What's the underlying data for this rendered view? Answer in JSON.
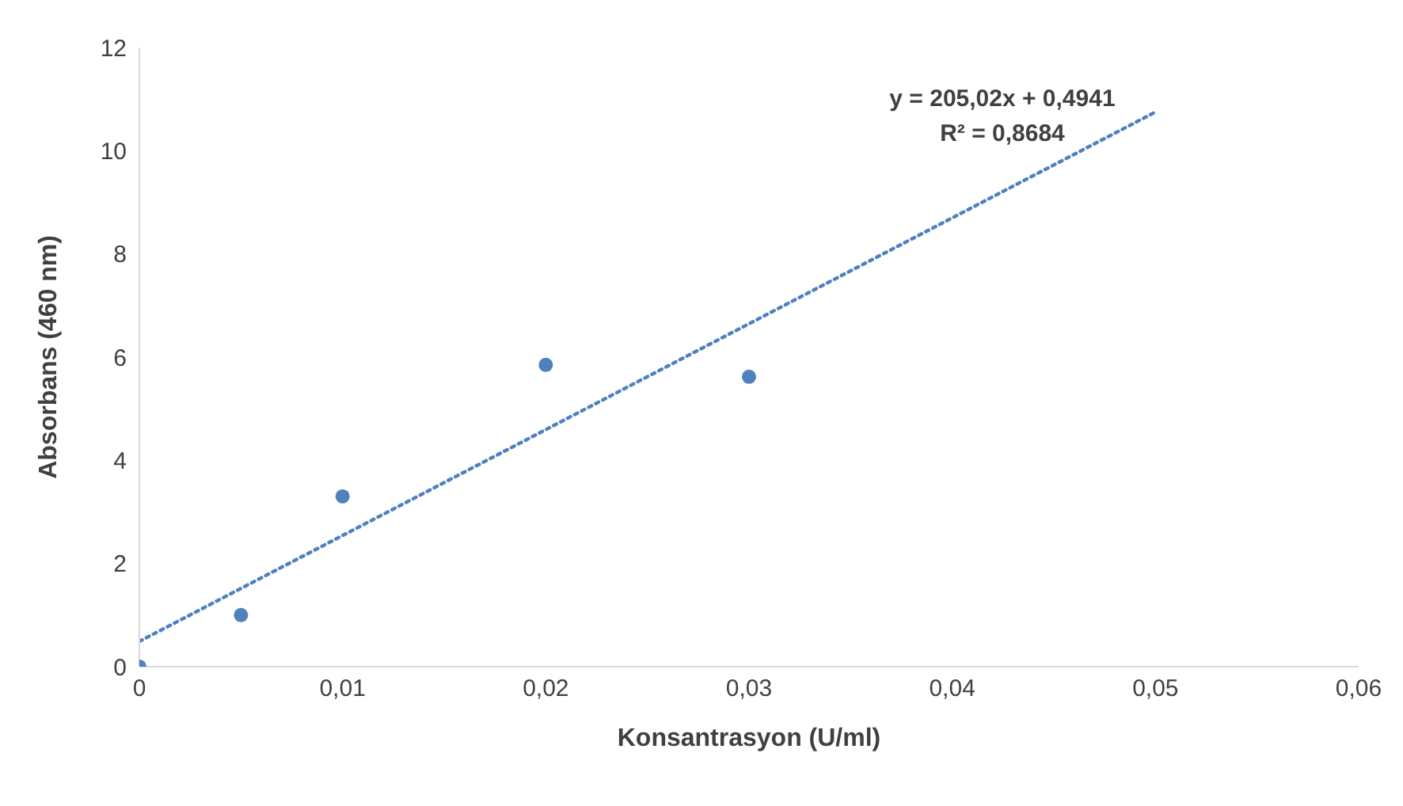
{
  "chart_data": {
    "type": "scatter",
    "xlabel": "Konsantrasyon  (U/ml)",
    "ylabel": "Absorbans (460 nm)",
    "series": [
      {
        "color": "#4f81bd",
        "marker": "circle",
        "x": [
          0,
          0.005,
          0.01,
          0.02,
          0.03
        ],
        "values": [
          0,
          1.0,
          3.3,
          5.85,
          5.62
        ]
      },
      {
        "type": "line",
        "color": "#4f81bd",
        "marker": "none",
        "line_style": "dotted",
        "x": [
          0,
          0.05
        ],
        "values": [
          0.49,
          10.75
        ]
      }
    ],
    "xlim": [
      0,
      0.06
    ],
    "xticks": [
      0,
      {
        "value": 0.01,
        "label": "0,01"
      },
      {
        "value": 0.02,
        "label": "0,02"
      },
      {
        "value": 0.03,
        "label": "0,03"
      },
      {
        "value": 0.04,
        "label": "0,04"
      },
      {
        "value": 0.05,
        "label": "0,05"
      },
      {
        "value": 0.06,
        "label": "0,06"
      }
    ],
    "ylim": [
      0,
      12
    ],
    "yticks": [
      0,
      2,
      4,
      6,
      8,
      10,
      12
    ],
    "grid": false,
    "annotations": [
      "y = 205,02x + 0,4941",
      "R² = 0,8684"
    ]
  }
}
